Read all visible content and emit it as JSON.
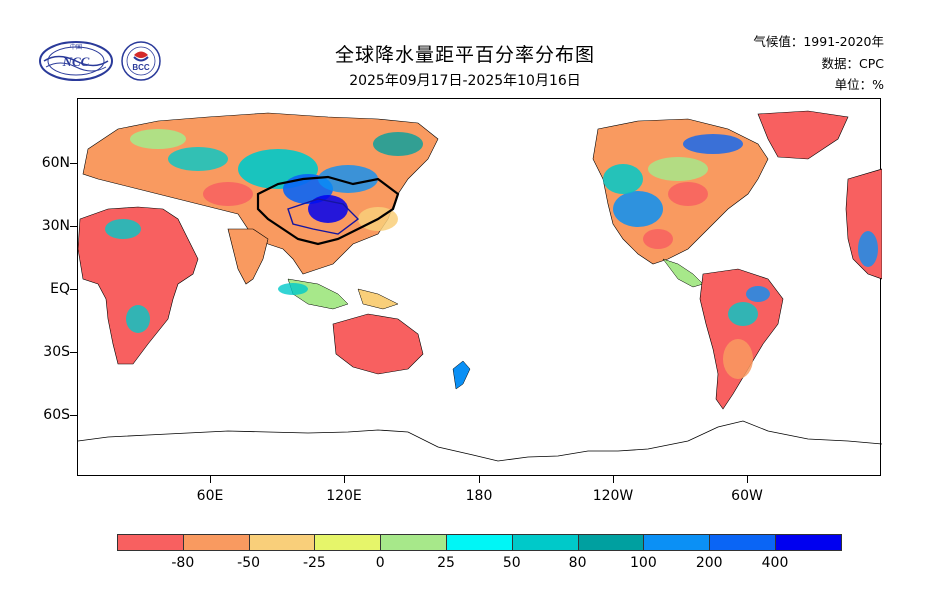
{
  "header": {
    "title": "全球降水量距平百分率分布图",
    "subtitle": "2025年09月17日-2025年10月16日",
    "climate_label": "气候值：1991-2020年",
    "source_label": "数据：CPC",
    "unit_label": "单位：%"
  },
  "logos": {
    "ncc": "NCC",
    "bcc": "BCC",
    "ncc_text": "中国",
    "bcc_text": "BEIJING CLIMATE CENTER"
  },
  "axes": {
    "lat_labels": [
      "60N",
      "30N",
      "EQ",
      "30S",
      "60S"
    ],
    "lon_labels": [
      "60E",
      "120E",
      "180",
      "120W",
      "60W"
    ]
  },
  "colorbar": {
    "labels": [
      "-80",
      "-50",
      "-25",
      "0",
      "25",
      "50",
      "80",
      "100",
      "200",
      "400"
    ],
    "colors": [
      "#f86060",
      "#f99a60",
      "#f9cf7a",
      "#e6f56a",
      "#a7e88a",
      "#00f6f6",
      "#00c9c9",
      "#00a0a0",
      "#0b90f5",
      "#0a65f5",
      "#0000f0"
    ]
  },
  "map": {
    "colors": {
      "dry_strong": "#f86060",
      "dry": "#f99a60",
      "dry_mild": "#f9cf7a",
      "near_normal": "#e6f56a",
      "wet_mild": "#a7e88a",
      "wet": "#00c9c9",
      "wet_strong": "#0b90f5",
      "wet_extreme": "#0000f0"
    }
  }
}
